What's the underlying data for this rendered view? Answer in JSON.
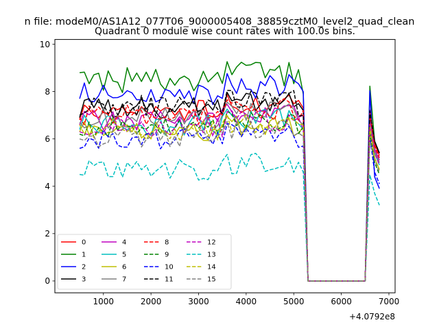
{
  "chart_data": {
    "type": "line",
    "suptitle": "n file: modeM0/AS1A12_077T06_9000005408_38859cztM0_level2_quad_clean",
    "title": "Quadrant 0 module wise count rates with 100.0s bins.",
    "xlabel": "",
    "ylabel": "",
    "x_offset_label": "+4.0792e8",
    "xlim": [
      -20,
      7130
    ],
    "ylim": [
      -0.5,
      10.2
    ],
    "xticks": [
      "1000",
      "2000",
      "3000",
      "4000",
      "5000",
      "6000",
      "7000"
    ],
    "xtick_values": [
      1000,
      2000,
      3000,
      4000,
      5000,
      6000,
      7000
    ],
    "yticks": [
      "0",
      "2",
      "4",
      "6",
      "8",
      "10"
    ],
    "ytick_values": [
      0,
      2,
      4,
      6,
      8,
      10
    ],
    "grid": false,
    "legend_position": "lower-left",
    "legend_columns": 4,
    "x_start": 500,
    "x_step": 100,
    "n_points": 64,
    "series": [
      {
        "name": "0",
        "color": "#ff0000",
        "dashed": false,
        "base": 7.2,
        "start_value": 6.8,
        "end_value": 7.3,
        "tail_value": 5.8
      },
      {
        "name": "1",
        "color": "#008000",
        "dashed": false,
        "base": 8.5,
        "start_value": 8.8,
        "end_value": 7.9,
        "tail_value": 5.9
      },
      {
        "name": "2",
        "color": "#0000ff",
        "dashed": false,
        "base": 8.0,
        "start_value": 7.7,
        "end_value": 8.0,
        "tail_value": 4.4
      },
      {
        "name": "3",
        "color": "#000000",
        "dashed": false,
        "base": 7.3,
        "start_value": 6.9,
        "end_value": 7.2,
        "tail_value": 5.9
      },
      {
        "name": "4",
        "color": "#bf00bf",
        "dashed": false,
        "base": 6.8,
        "start_value": 6.6,
        "end_value": 7.0,
        "tail_value": 5.6
      },
      {
        "name": "5",
        "color": "#00bfbf",
        "dashed": false,
        "base": 6.6,
        "start_value": 6.4,
        "end_value": 6.4,
        "tail_value": 5.4
      },
      {
        "name": "6",
        "color": "#bfbf00",
        "dashed": false,
        "base": 6.3,
        "start_value": 6.3,
        "end_value": 6.5,
        "tail_value": 5.2
      },
      {
        "name": "7",
        "color": "#808080",
        "dashed": false,
        "base": 6.9,
        "start_value": 6.7,
        "end_value": 6.6,
        "tail_value": 5.5
      },
      {
        "name": "8",
        "color": "#ff0000",
        "dashed": true,
        "base": 7.0,
        "start_value": 6.9,
        "end_value": 7.2,
        "tail_value": 5.7
      },
      {
        "name": "9",
        "color": "#008000",
        "dashed": true,
        "base": 6.5,
        "start_value": 6.2,
        "end_value": 6.5,
        "tail_value": 5.0
      },
      {
        "name": "10",
        "color": "#0000ff",
        "dashed": true,
        "base": 6.0,
        "start_value": 5.6,
        "end_value": 5.7,
        "tail_value": 4.6
      },
      {
        "name": "11",
        "color": "#000000",
        "dashed": true,
        "base": 7.4,
        "start_value": 7.0,
        "end_value": 7.0,
        "tail_value": 5.9
      },
      {
        "name": "12",
        "color": "#bf00bf",
        "dashed": true,
        "base": 6.5,
        "start_value": 6.3,
        "end_value": 6.4,
        "tail_value": 5.4
      },
      {
        "name": "13",
        "color": "#00bfbf",
        "dashed": true,
        "base": 4.7,
        "start_value": 4.5,
        "end_value": 4.6,
        "tail_value": 3.7
      },
      {
        "name": "14",
        "color": "#bfbf00",
        "dashed": true,
        "base": 6.4,
        "start_value": 6.6,
        "end_value": 6.6,
        "tail_value": 5.2
      },
      {
        "name": "15",
        "color": "#808080",
        "dashed": true,
        "base": 6.1,
        "start_value": 6.0,
        "end_value": 6.1,
        "tail_value": 5.1
      }
    ]
  }
}
